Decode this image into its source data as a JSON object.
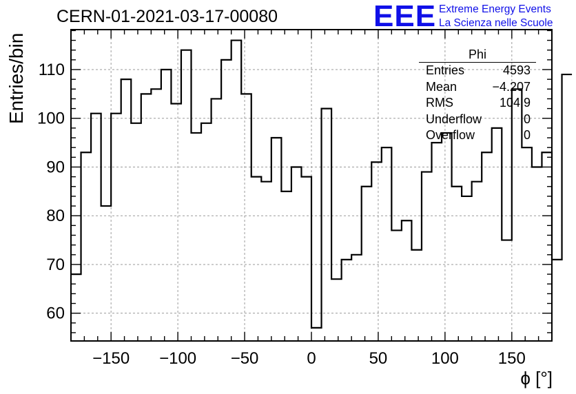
{
  "title": "CERN-01-2021-03-17-00080",
  "logo": {
    "mark": "EEE",
    "line1": "Extreme Energy Events",
    "line2": "La Scienza nelle Scuole",
    "color": "#1010e8"
  },
  "stats": {
    "name": "Phi",
    "rows": [
      {
        "label": "Entries",
        "value": "4593"
      },
      {
        "label": "Mean",
        "value": "−4.207"
      },
      {
        "label": "RMS",
        "value": "104.9"
      },
      {
        "label": "Underflow",
        "value": "0"
      },
      {
        "label": "Overflow",
        "value": "0"
      }
    ]
  },
  "chart_data": {
    "type": "bar",
    "style": "step-histogram",
    "xlabel": "ϕ [°]",
    "ylabel": "Entries/bin",
    "xlim": [
      -180,
      180
    ],
    "ylim": [
      54.3,
      118.2
    ],
    "grid": true,
    "bin_width": 7.5,
    "x_ticks": [
      -150,
      -100,
      -50,
      0,
      50,
      100,
      150
    ],
    "x_tick_labels": [
      "−150",
      "−100",
      "−50",
      "0",
      "50",
      "100",
      "150"
    ],
    "y_ticks": [
      60,
      70,
      80,
      90,
      100,
      110
    ],
    "y_tick_labels": [
      "60",
      "70",
      "80",
      "90",
      "100",
      "110"
    ],
    "values": [
      68,
      93,
      101,
      82,
      101,
      108,
      99,
      105,
      106,
      110,
      103,
      114,
      97,
      99,
      104,
      112,
      116,
      105,
      88,
      87,
      96,
      85,
      90,
      88,
      57,
      102,
      67,
      71,
      72,
      86,
      91,
      94,
      77,
      79,
      73,
      89,
      95,
      97,
      86,
      84,
      87,
      93,
      98,
      75,
      106,
      94,
      90,
      93,
      71,
      109
    ]
  }
}
